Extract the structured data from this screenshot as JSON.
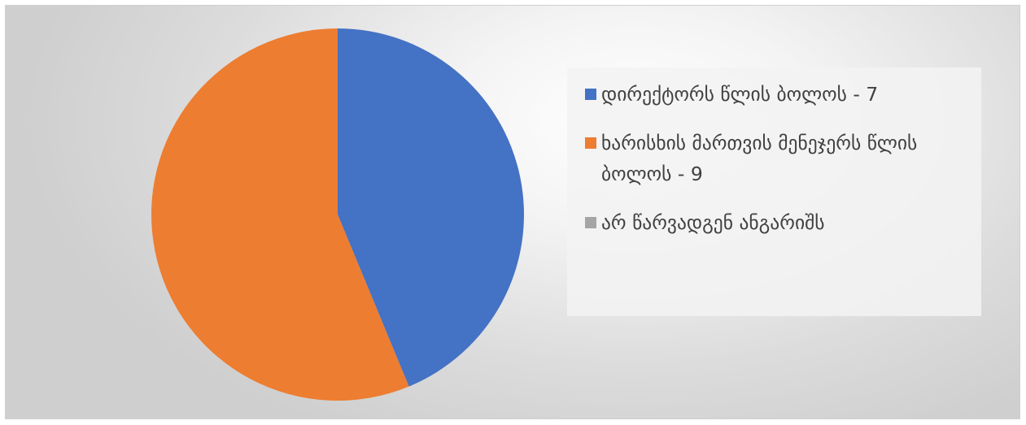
{
  "chart_data": {
    "type": "pie",
    "slices": [
      {
        "label": "დირექტორს წლის ბოლოს - 7",
        "value": 7,
        "color": "#4472C4"
      },
      {
        "label": "ხარისხის მართვის მენეჯერს წლის ბოლოს - 9",
        "value": 9,
        "color": "#ED7D31"
      },
      {
        "label": "არ წარვადგენ ანგარიშს",
        "value": 0,
        "color": "#A5A5A5"
      }
    ],
    "legend_position": "right"
  }
}
